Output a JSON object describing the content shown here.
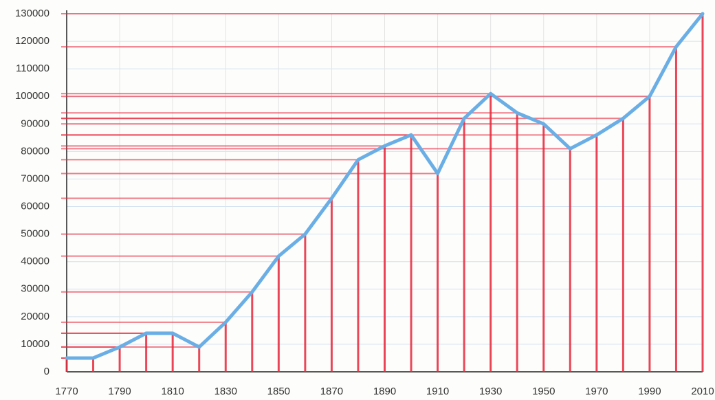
{
  "chart_data": {
    "type": "line",
    "x": [
      1770,
      1780,
      1790,
      1800,
      1810,
      1820,
      1830,
      1840,
      1850,
      1860,
      1870,
      1880,
      1890,
      1900,
      1910,
      1920,
      1930,
      1940,
      1950,
      1960,
      1970,
      1980,
      1990,
      2000,
      2010
    ],
    "series": [
      {
        "color": "#6aaee6",
        "values": [
          5000,
          5000,
          9000,
          14000,
          14000,
          9000,
          18000,
          29000,
          42000,
          50000,
          63000,
          77000,
          82000,
          86000,
          72000,
          92000,
          101000,
          94000,
          90000,
          81000,
          86000,
          92000,
          100000,
          118000,
          130000
        ]
      }
    ],
    "guide_color": "#e8283c",
    "xlim": [
      1770,
      2010
    ],
    "xticks": [
      1770,
      1790,
      1810,
      1830,
      1850,
      1870,
      1890,
      1910,
      1930,
      1950,
      1970,
      1990,
      2010
    ],
    "ylim": [
      0,
      130000
    ],
    "yticks": [
      0,
      10000,
      20000,
      30000,
      40000,
      50000,
      60000,
      70000,
      80000,
      90000,
      100000,
      110000,
      120000,
      130000
    ],
    "grid": true
  }
}
